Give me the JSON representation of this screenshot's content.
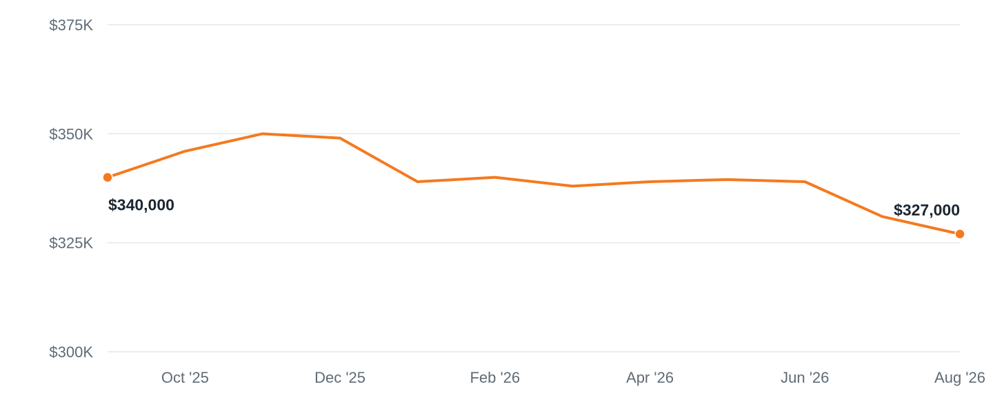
{
  "chart_data": {
    "type": "line",
    "title": "",
    "xlabel": "",
    "ylabel": "",
    "x": [
      "Sep '25",
      "Oct '25",
      "Nov '25",
      "Dec '25",
      "Jan '26",
      "Feb '26",
      "Mar '26",
      "Apr '26",
      "May '26",
      "Jun '26",
      "Jul '26",
      "Aug '26"
    ],
    "x_tick_labels": [
      "Oct '25",
      "Dec '25",
      "Feb '26",
      "Apr '26",
      "Jun '26",
      "Aug '26"
    ],
    "y_tick_labels": [
      "$375K",
      "$350K",
      "$325K",
      "$300K"
    ],
    "y_ticks": [
      375000,
      350000,
      325000,
      300000
    ],
    "ylim": [
      300000,
      375000
    ],
    "grid": true,
    "series": [
      {
        "values": [
          340000,
          346000,
          350000,
          349000,
          339000,
          340000,
          338000,
          339000,
          339500,
          339000,
          331000,
          327000
        ],
        "color": "#f47a1f"
      }
    ],
    "annotations": [
      {
        "index": 0,
        "text": "$340,000"
      },
      {
        "index": 11,
        "text": "$327,000"
      }
    ]
  }
}
